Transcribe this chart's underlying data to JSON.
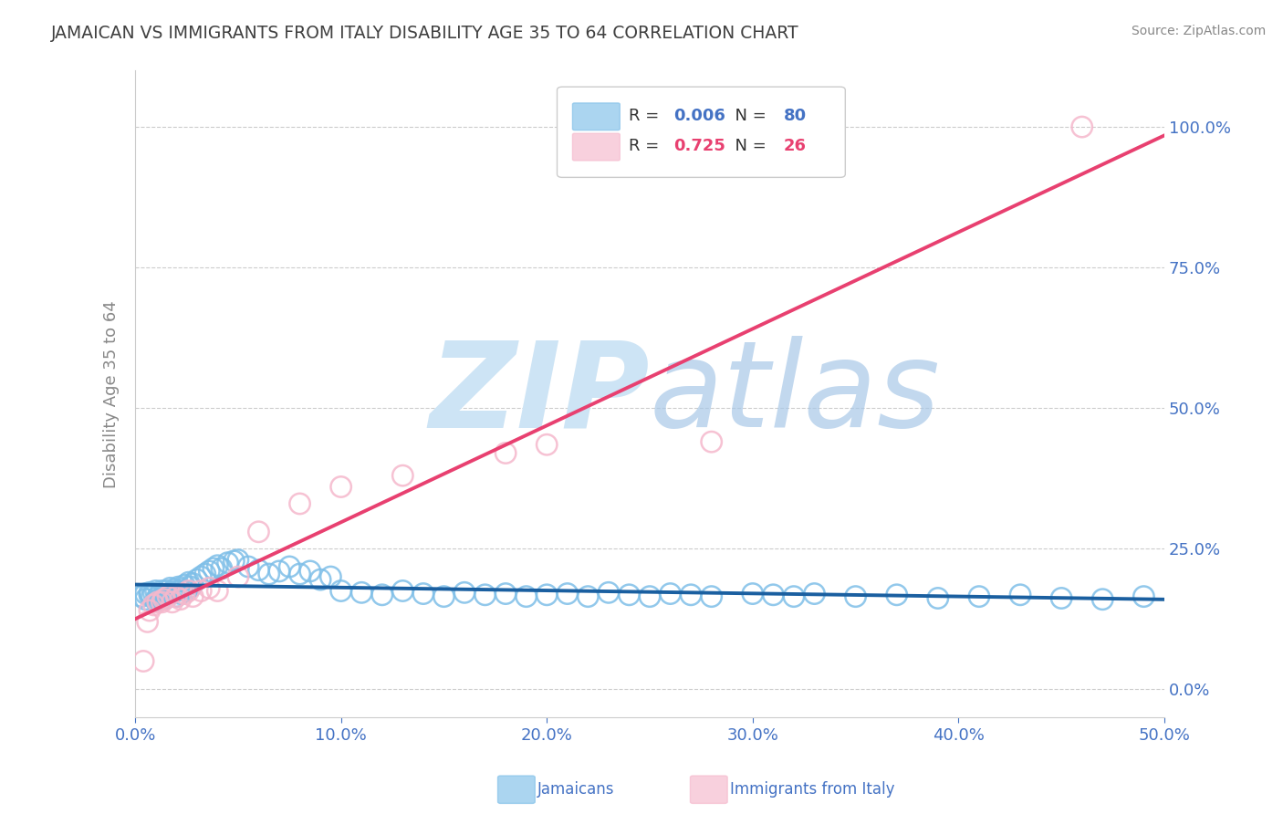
{
  "title": "JAMAICAN VS IMMIGRANTS FROM ITALY DISABILITY AGE 35 TO 64 CORRELATION CHART",
  "source_text": "Source: ZipAtlas.com",
  "ylabel": "Disability Age 35 to 64",
  "xlabel_jamaicans": "Jamaicans",
  "xlabel_italy": "Immigrants from Italy",
  "xlim": [
    0.0,
    0.5
  ],
  "ylim": [
    -0.05,
    1.1
  ],
  "xtick_labels": [
    "0.0%",
    "10.0%",
    "20.0%",
    "30.0%",
    "40.0%",
    "50.0%"
  ],
  "xtick_vals": [
    0.0,
    0.1,
    0.2,
    0.3,
    0.4,
    0.5
  ],
  "ytick_labels": [
    "0.0%",
    "25.0%",
    "50.0%",
    "75.0%",
    "100.0%"
  ],
  "ytick_vals": [
    0.0,
    0.25,
    0.5,
    0.75,
    1.0
  ],
  "R_jamaican": "0.006",
  "N_jamaican": "80",
  "R_italy": "0.725",
  "N_italy": "26",
  "blue_scatter_color": "#7fbfe8",
  "pink_scatter_color": "#f5b8cc",
  "blue_line_color": "#1a5fa0",
  "pink_line_color": "#e84070",
  "blue_label_color": "#4472c4",
  "pink_label_color": "#e84070",
  "watermark_color": "#cde4f5",
  "title_color": "#404040",
  "axis_tick_color": "#4472c4",
  "ylabel_color": "#888888",
  "source_color": "#888888",
  "background_color": "#ffffff",
  "grid_color": "#cccccc",
  "jamaican_x": [
    0.003,
    0.005,
    0.005,
    0.007,
    0.007,
    0.008,
    0.009,
    0.01,
    0.01,
    0.011,
    0.012,
    0.013,
    0.013,
    0.014,
    0.015,
    0.015,
    0.016,
    0.017,
    0.018,
    0.019,
    0.02,
    0.02,
    0.021,
    0.022,
    0.023,
    0.024,
    0.025,
    0.026,
    0.027,
    0.028,
    0.03,
    0.032,
    0.034,
    0.036,
    0.038,
    0.04,
    0.042,
    0.045,
    0.048,
    0.05,
    0.055,
    0.06,
    0.065,
    0.07,
    0.075,
    0.08,
    0.085,
    0.09,
    0.095,
    0.1,
    0.11,
    0.12,
    0.13,
    0.14,
    0.15,
    0.16,
    0.17,
    0.18,
    0.19,
    0.2,
    0.21,
    0.22,
    0.23,
    0.24,
    0.25,
    0.26,
    0.27,
    0.28,
    0.3,
    0.31,
    0.32,
    0.33,
    0.35,
    0.37,
    0.39,
    0.41,
    0.43,
    0.45,
    0.47,
    0.49
  ],
  "jamaican_y": [
    0.165,
    0.17,
    0.16,
    0.168,
    0.172,
    0.165,
    0.17,
    0.158,
    0.175,
    0.165,
    0.17,
    0.16,
    0.175,
    0.168,
    0.162,
    0.175,
    0.17,
    0.18,
    0.172,
    0.178,
    0.165,
    0.175,
    0.182,
    0.17,
    0.178,
    0.185,
    0.175,
    0.19,
    0.182,
    0.188,
    0.195,
    0.2,
    0.205,
    0.21,
    0.215,
    0.22,
    0.215,
    0.225,
    0.228,
    0.23,
    0.218,
    0.212,
    0.205,
    0.21,
    0.218,
    0.205,
    0.21,
    0.195,
    0.2,
    0.175,
    0.172,
    0.168,
    0.175,
    0.17,
    0.165,
    0.172,
    0.168,
    0.17,
    0.165,
    0.168,
    0.17,
    0.165,
    0.172,
    0.168,
    0.165,
    0.17,
    0.168,
    0.165,
    0.17,
    0.168,
    0.165,
    0.17,
    0.165,
    0.168,
    0.162,
    0.165,
    0.168,
    0.162,
    0.16,
    0.165
  ],
  "italy_x": [
    0.004,
    0.006,
    0.007,
    0.009,
    0.011,
    0.013,
    0.014,
    0.016,
    0.018,
    0.02,
    0.022,
    0.024,
    0.026,
    0.028,
    0.032,
    0.036,
    0.04,
    0.05,
    0.06,
    0.08,
    0.1,
    0.13,
    0.18,
    0.2,
    0.28,
    0.46
  ],
  "italy_y": [
    0.05,
    0.12,
    0.14,
    0.15,
    0.155,
    0.155,
    0.16,
    0.165,
    0.155,
    0.165,
    0.16,
    0.17,
    0.175,
    0.165,
    0.175,
    0.18,
    0.175,
    0.2,
    0.28,
    0.33,
    0.36,
    0.38,
    0.42,
    0.435,
    0.44,
    1.0
  ]
}
